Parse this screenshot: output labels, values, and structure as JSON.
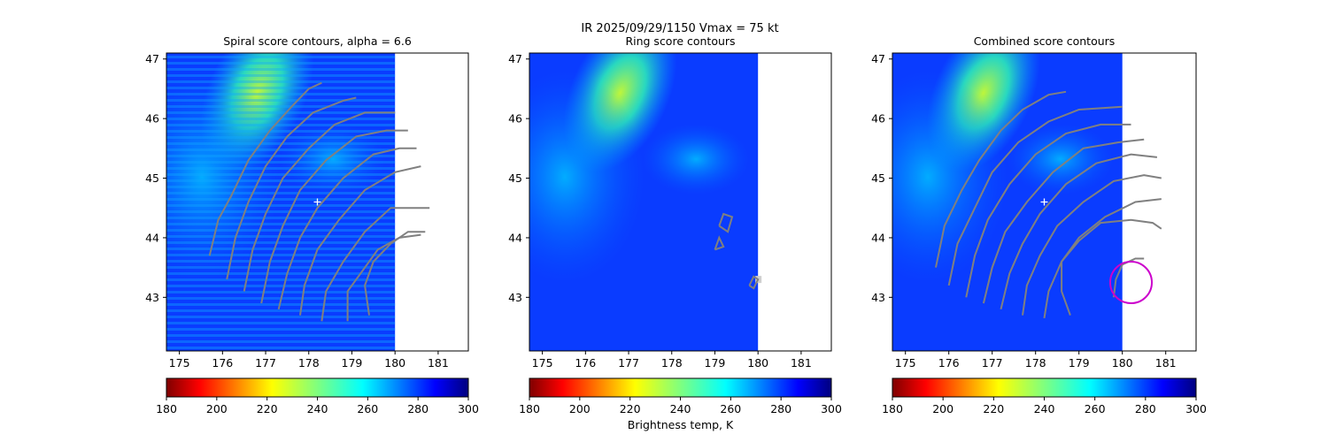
{
  "figure": {
    "suptitle_line1": "IR  2025/09/29/1150    Vmax = 75 kt",
    "colorbar_label": "Brightness temp, K"
  },
  "panels": [
    {
      "title": "Spiral score contours, alpha =  6.6"
    },
    {
      "title": "Ring score contours"
    },
    {
      "title": "Combined score contours"
    }
  ],
  "chart_data": [
    {
      "type": "heatmap",
      "title": "Spiral score contours, alpha =  6.6",
      "xlim": [
        174.7,
        181.7
      ],
      "ylim": [
        42.1,
        47.1
      ],
      "xticks": [
        175,
        176,
        177,
        178,
        179,
        180,
        181
      ],
      "yticks": [
        43,
        44,
        45,
        46,
        47
      ],
      "data_extent_x": [
        174.7,
        180.0
      ],
      "colormap": "jet_r",
      "clim": [
        180,
        300
      ],
      "colorbar_ticks": [
        180,
        200,
        220,
        240,
        260,
        280,
        300
      ],
      "markers": [
        {
          "symbol": "+",
          "x": 178.2,
          "y": 44.6,
          "color": "#ffffff"
        }
      ],
      "contours": [
        {
          "color": "#808080",
          "points": [
            [
              175.7,
              43.7
            ],
            [
              175.9,
              44.3
            ],
            [
              176.2,
              44.7
            ],
            [
              176.6,
              45.3
            ],
            [
              177.1,
              45.8
            ],
            [
              177.6,
              46.2
            ],
            [
              178.0,
              46.5
            ],
            [
              178.3,
              46.6
            ]
          ]
        },
        {
          "color": "#808080",
          "points": [
            [
              176.1,
              43.3
            ],
            [
              176.3,
              44.0
            ],
            [
              176.6,
              44.6
            ],
            [
              177.0,
              45.2
            ],
            [
              177.5,
              45.7
            ],
            [
              178.1,
              46.1
            ],
            [
              178.8,
              46.3
            ],
            [
              179.1,
              46.35
            ]
          ]
        },
        {
          "color": "#808080",
          "points": [
            [
              176.5,
              43.1
            ],
            [
              176.7,
              43.8
            ],
            [
              177.0,
              44.4
            ],
            [
              177.4,
              45.0
            ],
            [
              178.0,
              45.5
            ],
            [
              178.6,
              45.9
            ],
            [
              179.3,
              46.1
            ],
            [
              180.0,
              46.1
            ]
          ]
        },
        {
          "color": "#808080",
          "points": [
            [
              176.9,
              42.9
            ],
            [
              177.1,
              43.6
            ],
            [
              177.4,
              44.2
            ],
            [
              177.8,
              44.8
            ],
            [
              178.4,
              45.3
            ],
            [
              179.1,
              45.7
            ],
            [
              179.8,
              45.8
            ],
            [
              180.3,
              45.8
            ]
          ]
        },
        {
          "color": "#808080",
          "points": [
            [
              177.3,
              42.8
            ],
            [
              177.5,
              43.4
            ],
            [
              177.8,
              44.0
            ],
            [
              178.2,
              44.5
            ],
            [
              178.8,
              45.0
            ],
            [
              179.5,
              45.4
            ],
            [
              180.1,
              45.5
            ],
            [
              180.5,
              45.5
            ]
          ]
        },
        {
          "color": "#808080",
          "points": [
            [
              177.8,
              42.7
            ],
            [
              177.9,
              43.2
            ],
            [
              178.2,
              43.8
            ],
            [
              178.7,
              44.3
            ],
            [
              179.3,
              44.8
            ],
            [
              180.0,
              45.1
            ],
            [
              180.6,
              45.2
            ]
          ]
        },
        {
          "color": "#808080",
          "points": [
            [
              178.3,
              42.6
            ],
            [
              178.4,
              43.1
            ],
            [
              178.8,
              43.6
            ],
            [
              179.3,
              44.1
            ],
            [
              179.9,
              44.5
            ],
            [
              180.5,
              44.5
            ],
            [
              180.8,
              44.5
            ]
          ]
        },
        {
          "color": "#808080",
          "points": [
            [
              178.9,
              42.6
            ],
            [
              178.9,
              43.1
            ],
            [
              179.2,
              43.4
            ],
            [
              179.6,
              43.8
            ],
            [
              180.1,
              44.0
            ],
            [
              180.6,
              44.05
            ]
          ]
        },
        {
          "color": "#808080",
          "points": [
            [
              179.4,
              42.7
            ],
            [
              179.3,
              43.2
            ],
            [
              179.5,
              43.6
            ],
            [
              179.9,
              43.9
            ],
            [
              180.3,
              44.1
            ],
            [
              180.7,
              44.1
            ]
          ]
        }
      ]
    },
    {
      "type": "heatmap",
      "title": "Ring score contours",
      "xlim": [
        174.7,
        181.7
      ],
      "ylim": [
        42.1,
        47.1
      ],
      "xticks": [
        175,
        176,
        177,
        178,
        179,
        180,
        181
      ],
      "yticks": [
        43,
        44,
        45,
        46,
        47
      ],
      "data_extent_x": [
        174.7,
        180.0
      ],
      "colormap": "jet_r",
      "clim": [
        180,
        300
      ],
      "colorbar_ticks": [
        180,
        200,
        220,
        240,
        260,
        280,
        300
      ],
      "xlabel": "Brightness temp, K",
      "contours": [
        {
          "color": "#808080",
          "points": [
            [
              179.1,
              44.2
            ],
            [
              179.2,
              44.4
            ],
            [
              179.4,
              44.35
            ],
            [
              179.3,
              44.1
            ],
            [
              179.1,
              44.2
            ]
          ]
        },
        {
          "color": "#808080",
          "points": [
            [
              179.0,
              43.8
            ],
            [
              179.1,
              44.0
            ],
            [
              179.2,
              43.85
            ],
            [
              179.0,
              43.8
            ]
          ]
        },
        {
          "color": "#808080",
          "points": [
            [
              179.8,
              43.2
            ],
            [
              179.9,
              43.35
            ],
            [
              180.0,
              43.3
            ],
            [
              179.9,
              43.15
            ],
            [
              179.8,
              43.2
            ]
          ]
        }
      ]
    },
    {
      "type": "heatmap",
      "title": "Combined score contours",
      "xlim": [
        174.7,
        181.7
      ],
      "ylim": [
        42.1,
        47.1
      ],
      "xticks": [
        175,
        176,
        177,
        178,
        179,
        180,
        181
      ],
      "yticks": [
        43,
        44,
        45,
        46,
        47
      ],
      "data_extent_x": [
        174.7,
        180.0
      ],
      "colormap": "jet_r",
      "clim": [
        180,
        300
      ],
      "colorbar_ticks": [
        180,
        200,
        220,
        240,
        260,
        280,
        300
      ],
      "markers": [
        {
          "symbol": "+",
          "x": 178.2,
          "y": 44.6,
          "color": "#ffffff"
        }
      ],
      "circles": [
        {
          "x": 180.2,
          "y": 43.25,
          "r": 0.48,
          "color": "#cc00cc"
        }
      ],
      "contours": [
        {
          "color": "#808080",
          "points": [
            [
              175.7,
              43.5
            ],
            [
              175.9,
              44.2
            ],
            [
              176.3,
              44.8
            ],
            [
              176.7,
              45.3
            ],
            [
              177.2,
              45.8
            ],
            [
              177.7,
              46.15
            ],
            [
              178.3,
              46.4
            ],
            [
              178.7,
              46.45
            ]
          ]
        },
        {
          "color": "#808080",
          "points": [
            [
              176.0,
              43.2
            ],
            [
              176.2,
              43.9
            ],
            [
              176.6,
              44.5
            ],
            [
              177.0,
              45.1
            ],
            [
              177.6,
              45.6
            ],
            [
              178.3,
              45.95
            ],
            [
              179.0,
              46.15
            ],
            [
              180.0,
              46.2
            ]
          ]
        },
        {
          "color": "#808080",
          "points": [
            [
              176.4,
              43.0
            ],
            [
              176.6,
              43.7
            ],
            [
              176.9,
              44.3
            ],
            [
              177.4,
              44.9
            ],
            [
              178.0,
              45.4
            ],
            [
              178.7,
              45.75
            ],
            [
              179.5,
              45.9
            ],
            [
              180.2,
              45.9
            ]
          ]
        },
        {
          "color": "#808080",
          "points": [
            [
              176.8,
              42.9
            ],
            [
              177.0,
              43.5
            ],
            [
              177.3,
              44.1
            ],
            [
              177.8,
              44.6
            ],
            [
              178.4,
              45.1
            ],
            [
              179.1,
              45.5
            ],
            [
              179.9,
              45.6
            ],
            [
              180.5,
              45.65
            ]
          ]
        },
        {
          "color": "#808080",
          "points": [
            [
              177.2,
              42.8
            ],
            [
              177.4,
              43.4
            ],
            [
              177.7,
              43.9
            ],
            [
              178.1,
              44.4
            ],
            [
              178.7,
              44.9
            ],
            [
              179.4,
              45.25
            ],
            [
              180.2,
              45.4
            ],
            [
              180.8,
              45.35
            ]
          ]
        },
        {
          "color": "#808080",
          "points": [
            [
              177.7,
              42.7
            ],
            [
              177.8,
              43.2
            ],
            [
              178.1,
              43.7
            ],
            [
              178.5,
              44.2
            ],
            [
              179.1,
              44.6
            ],
            [
              179.8,
              44.95
            ],
            [
              180.5,
              45.05
            ],
            [
              180.9,
              45.0
            ]
          ]
        },
        {
          "color": "#808080",
          "points": [
            [
              178.2,
              42.65
            ],
            [
              178.3,
              43.1
            ],
            [
              178.6,
              43.6
            ],
            [
              179.0,
              44.0
            ],
            [
              179.6,
              44.35
            ],
            [
              180.3,
              44.6
            ],
            [
              180.9,
              44.65
            ]
          ]
        },
        {
          "color": "#808080",
          "points": [
            [
              178.8,
              42.7
            ],
            [
              178.6,
              43.1
            ],
            [
              178.6,
              43.6
            ],
            [
              179.0,
              43.95
            ],
            [
              179.5,
              44.25
            ],
            [
              180.2,
              44.3
            ],
            [
              180.7,
              44.25
            ],
            [
              180.9,
              44.15
            ]
          ]
        },
        {
          "color": "#808080",
          "points": [
            [
              179.8,
              43.0
            ],
            [
              179.85,
              43.3
            ],
            [
              180.0,
              43.55
            ],
            [
              180.3,
              43.65
            ],
            [
              180.5,
              43.65
            ]
          ]
        }
      ]
    }
  ]
}
